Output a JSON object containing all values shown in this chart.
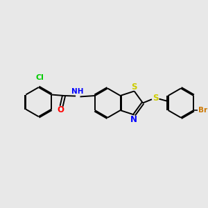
{
  "bg_color": "#e8e8e8",
  "bond_color": "#000000",
  "atom_colors": {
    "Cl": "#00cc00",
    "O": "#ff0000",
    "N": "#0000ff",
    "S": "#cccc00",
    "Br": "#cc7700"
  },
  "lw": 1.4,
  "doff": 0.055,
  "fs": 7.5,
  "figsize": [
    3.0,
    3.0
  ],
  "dpi": 100,
  "xlim": [
    0,
    10
  ],
  "ylim": [
    0,
    10
  ]
}
